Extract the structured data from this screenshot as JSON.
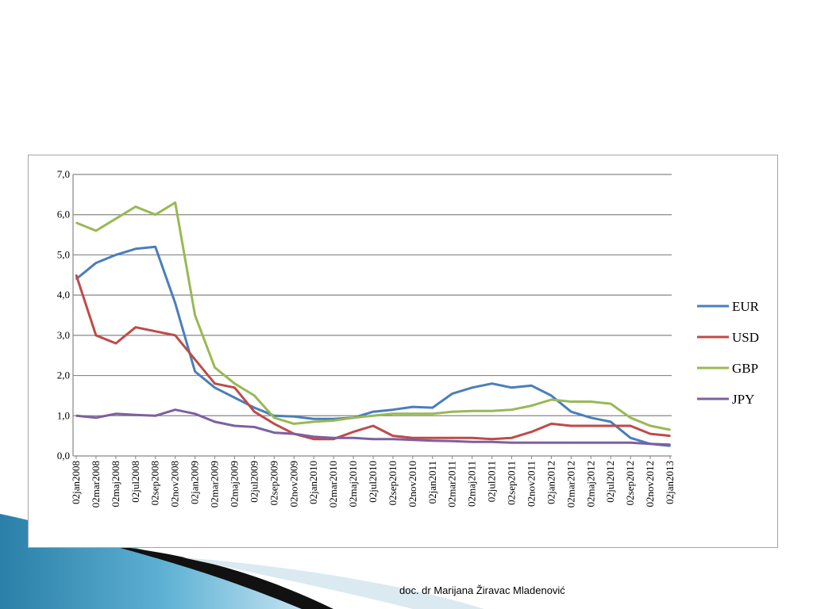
{
  "footer": {
    "credit": "doc. dr Marijana Žiravac Mladenović"
  },
  "chart_data": {
    "type": "line",
    "title": "",
    "xlabel": "",
    "ylabel": "",
    "ylim": [
      0,
      7
    ],
    "y_ticks": [
      "0,0",
      "1,0",
      "2,0",
      "3,0",
      "4,0",
      "5,0",
      "6,0",
      "7,0"
    ],
    "grid": "horizontal",
    "legend_position": "right",
    "x": [
      "02jan2008",
      "02mar2008",
      "02maj2008",
      "02jul2008",
      "02sep2008",
      "02nov2008",
      "02jan2009",
      "02mar2009",
      "02maj2009",
      "02jul2009",
      "02sep2009",
      "02nov2009",
      "02jan2010",
      "02mar2010",
      "02maj2010",
      "02jul2010",
      "02sep2010",
      "02nov2010",
      "02jan2011",
      "02mar2011",
      "02maj2011",
      "02jul2011",
      "02sep2011",
      "02nov2011",
      "02jan2012",
      "02mar2012",
      "02maj2012",
      "02jul2012",
      "02sep2012",
      "02nov2012",
      "02jan2013"
    ],
    "series": [
      {
        "name": "EUR",
        "color": "#4a7ebb",
        "values": [
          4.4,
          4.8,
          5.0,
          5.15,
          5.2,
          3.8,
          2.1,
          1.7,
          1.45,
          1.2,
          1.0,
          0.98,
          0.92,
          0.92,
          0.95,
          1.1,
          1.15,
          1.22,
          1.2,
          1.55,
          1.7,
          1.8,
          1.7,
          1.75,
          1.5,
          1.1,
          0.95,
          0.85,
          0.45,
          0.3,
          0.25
        ]
      },
      {
        "name": "USD",
        "color": "#be4b48",
        "values": [
          4.5,
          3.0,
          2.8,
          3.2,
          3.1,
          3.0,
          2.4,
          1.8,
          1.7,
          1.1,
          0.8,
          0.55,
          0.42,
          0.42,
          0.6,
          0.75,
          0.5,
          0.45,
          0.45,
          0.45,
          0.45,
          0.42,
          0.45,
          0.6,
          0.8,
          0.75,
          0.75,
          0.75,
          0.75,
          0.55,
          0.5
        ]
      },
      {
        "name": "GBP",
        "color": "#98b954",
        "values": [
          5.8,
          5.6,
          5.9,
          6.2,
          6.0,
          6.3,
          3.5,
          2.2,
          1.8,
          1.5,
          0.95,
          0.8,
          0.85,
          0.88,
          0.95,
          1.0,
          1.05,
          1.05,
          1.05,
          1.1,
          1.12,
          1.12,
          1.15,
          1.25,
          1.4,
          1.35,
          1.35,
          1.3,
          0.95,
          0.75,
          0.65
        ]
      },
      {
        "name": "JPY",
        "color": "#7d60a0",
        "values": [
          1.0,
          0.95,
          1.05,
          1.02,
          1.0,
          1.15,
          1.05,
          0.85,
          0.75,
          0.72,
          0.58,
          0.55,
          0.48,
          0.45,
          0.45,
          0.42,
          0.42,
          0.4,
          0.38,
          0.37,
          0.35,
          0.35,
          0.33,
          0.33,
          0.33,
          0.33,
          0.33,
          0.33,
          0.33,
          0.3,
          0.28
        ]
      }
    ]
  }
}
